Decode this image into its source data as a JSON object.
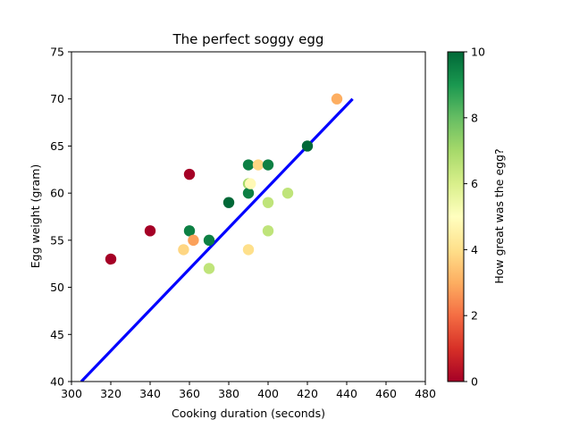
{
  "chart_data": {
    "type": "scatter",
    "title": "The perfect soggy egg",
    "xlabel": "Cooking duration (seconds)",
    "ylabel": "Egg weight (gram)",
    "xlim": [
      300,
      480
    ],
    "ylim": [
      40,
      75
    ],
    "x_ticks": [
      300,
      320,
      340,
      360,
      380,
      400,
      420,
      440,
      460,
      480
    ],
    "y_ticks": [
      40,
      45,
      50,
      55,
      60,
      65,
      70,
      75
    ],
    "points": [
      {
        "x": 320,
        "y": 53,
        "c": 0
      },
      {
        "x": 340,
        "y": 56,
        "c": 0
      },
      {
        "x": 357,
        "y": 54,
        "c": 3.8
      },
      {
        "x": 360,
        "y": 62,
        "c": 0
      },
      {
        "x": 360,
        "y": 56,
        "c": 9.5
      },
      {
        "x": 362,
        "y": 55,
        "c": 2.8
      },
      {
        "x": 370,
        "y": 55,
        "c": 9.5
      },
      {
        "x": 370,
        "y": 52,
        "c": 6.5
      },
      {
        "x": 380,
        "y": 59,
        "c": 10
      },
      {
        "x": 390,
        "y": 63,
        "c": 9.5
      },
      {
        "x": 390,
        "y": 61,
        "c": 7
      },
      {
        "x": 390,
        "y": 60,
        "c": 9.5
      },
      {
        "x": 391,
        "y": 61,
        "c": 4.8
      },
      {
        "x": 390,
        "y": 54,
        "c": 4
      },
      {
        "x": 395,
        "y": 63,
        "c": 3.8
      },
      {
        "x": 400,
        "y": 63,
        "c": 9.5
      },
      {
        "x": 400,
        "y": 59,
        "c": 6.5
      },
      {
        "x": 400,
        "y": 56,
        "c": 6.5
      },
      {
        "x": 410,
        "y": 60,
        "c": 6.5
      },
      {
        "x": 420,
        "y": 65,
        "c": 10
      },
      {
        "x": 435,
        "y": 70,
        "c": 3
      }
    ],
    "fit_line": {
      "x": [
        305,
        443
      ],
      "y": [
        40,
        70
      ],
      "color": "#0000ff"
    },
    "colorbar": {
      "label": "How great was the egg?",
      "min": 0,
      "max": 10,
      "ticks": [
        0,
        2,
        4,
        6,
        8,
        10
      ],
      "colormap": "RdYlGn"
    },
    "grid": false
  }
}
